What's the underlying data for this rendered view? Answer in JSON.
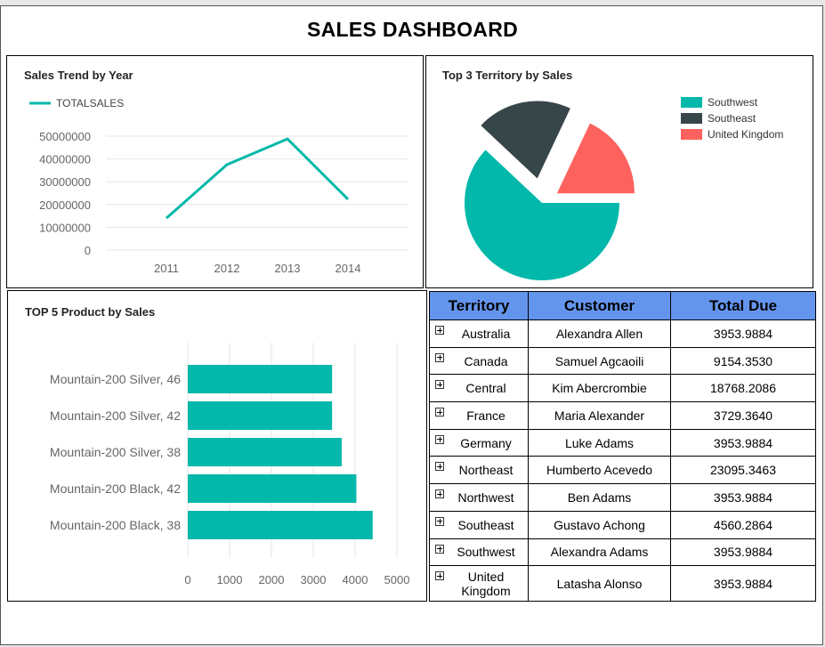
{
  "dashboard": {
    "title": "SALES DASHBOARD"
  },
  "line_panel": {
    "title": "Sales Trend by Year",
    "legend_label": "TOTALSALES"
  },
  "pie_panel": {
    "title": "Top 3 Territory by Sales"
  },
  "bar_panel": {
    "title": "TOP 5 Product by Sales"
  },
  "table": {
    "headers": [
      "Territory",
      "Customer",
      "Total Due"
    ],
    "rows": [
      {
        "territory": "Australia",
        "customer": "Alexandra Allen",
        "total_due": "3953.9884"
      },
      {
        "territory": "Canada",
        "customer": "Samuel Agcaoili",
        "total_due": "9154.3530"
      },
      {
        "territory": "Central",
        "customer": "Kim Abercrombie",
        "total_due": "18768.2086"
      },
      {
        "territory": "France",
        "customer": "Maria Alexander",
        "total_due": "3729.3640"
      },
      {
        "territory": "Germany",
        "customer": "Luke Adams",
        "total_due": "3953.9884"
      },
      {
        "territory": "Northeast",
        "customer": "Humberto Acevedo",
        "total_due": "23095.3463"
      },
      {
        "territory": "Northwest",
        "customer": "Ben Adams",
        "total_due": "3953.9884"
      },
      {
        "territory": "Southeast",
        "customer": "Gustavo Achong",
        "total_due": "4560.2864"
      },
      {
        "territory": "Southwest",
        "customer": "Alexandra Adams",
        "total_due": "3953.9884"
      },
      {
        "territory": "United Kingdom",
        "customer": "Latasha Alonso",
        "total_due": "3953.9884"
      }
    ]
  },
  "colors": {
    "teal": "#01B8AA",
    "dark": "#374649",
    "coral": "#FD625E",
    "header_blue": "#6495ED"
  },
  "chart_data": [
    {
      "type": "line",
      "title": "Sales Trend by Year",
      "categories": [
        "2011",
        "2012",
        "2013",
        "2014"
      ],
      "series": [
        {
          "name": "TOTALSALES",
          "values": [
            14000000,
            37500000,
            48800000,
            22300000
          ]
        }
      ],
      "ylim": [
        0,
        50000000
      ],
      "yticks": [
        "0",
        "10000000",
        "20000000",
        "30000000",
        "40000000",
        "50000000"
      ],
      "grid": true,
      "legend": "top-left"
    },
    {
      "type": "pie",
      "title": "Top 3 Territory by Sales",
      "labels": [
        "Southwest",
        "Southeast",
        "United Kingdom"
      ],
      "values": [
        62,
        20,
        18
      ],
      "legend": "right"
    },
    {
      "type": "bar",
      "orientation": "horizontal",
      "title": "TOP 5 Product by Sales",
      "categories": [
        "Mountain-200 Silver, 46",
        "Mountain-200 Silver, 42",
        "Mountain-200 Silver, 38",
        "Mountain-200 Black, 42",
        "Mountain-200 Black, 38"
      ],
      "values": [
        3450,
        3450,
        3680,
        4030,
        4420
      ],
      "xlim": [
        0,
        5000
      ],
      "xticks": [
        "0",
        "1000",
        "2000",
        "3000",
        "4000",
        "5000"
      ],
      "grid": true
    }
  ]
}
